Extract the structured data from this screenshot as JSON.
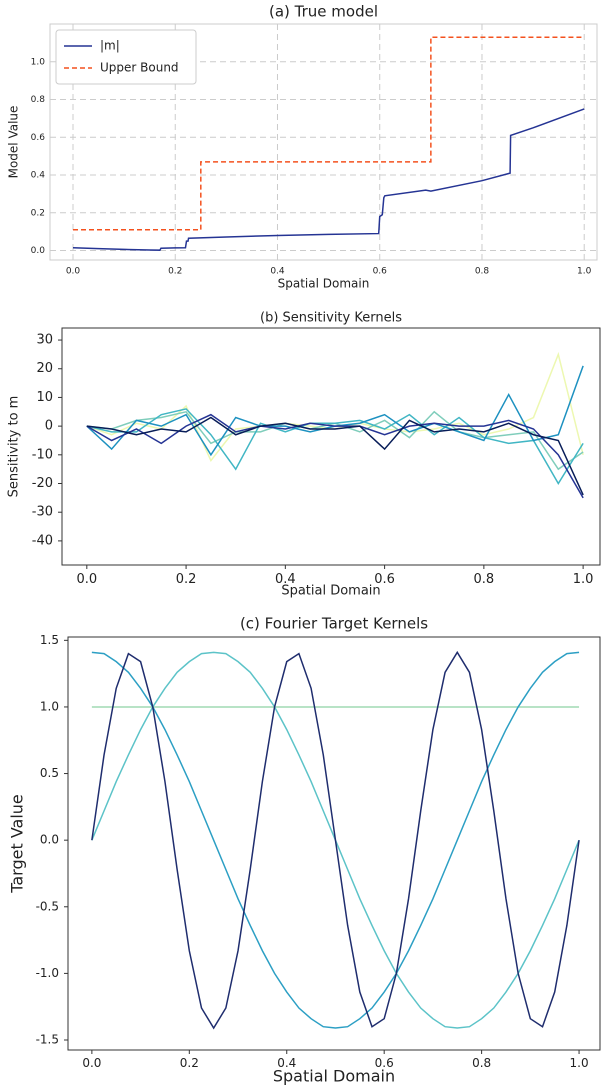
{
  "chart_data": [
    {
      "type": "line",
      "title": "(a) True model",
      "xlabel": "Spatial Domain",
      "ylabel": "Model Value",
      "xlim": [
        -0.045,
        1.025
      ],
      "ylim": [
        -0.05,
        1.2
      ],
      "xticks": [
        {
          "value": 0,
          "label": "0.0"
        },
        0.2,
        0.4,
        0.6,
        0.8,
        {
          "value": 1,
          "label": "1.0"
        }
      ],
      "yticks": [
        {
          "value": 0,
          "label": "0.0"
        },
        0.2,
        0.4,
        0.6,
        0.8,
        {
          "value": 1,
          "label": "1.0"
        }
      ],
      "grid": true,
      "legend": "upper left",
      "series": [
        {
          "name": "|m|",
          "color": "#253494",
          "linestyle": "solid",
          "x": [
            0,
            0.05,
            0.1,
            0.15,
            0.17,
            0.172,
            0.2,
            0.22,
            0.222,
            0.225,
            0.226,
            0.3,
            0.4,
            0.5,
            0.598,
            0.6,
            0.605,
            0.608,
            0.61,
            0.69,
            0.7,
            0.8,
            0.855,
            0.856,
            0.9,
            1.0
          ],
          "values": [
            0.015,
            0.01,
            0.006,
            0.003,
            0.002,
            0.012,
            0.014,
            0.015,
            0.05,
            0.05,
            0.065,
            0.072,
            0.08,
            0.086,
            0.09,
            0.18,
            0.19,
            0.28,
            0.29,
            0.32,
            0.315,
            0.37,
            0.41,
            0.61,
            0.65,
            0.75
          ]
        },
        {
          "name": "Upper Bound",
          "color": "#f4511e",
          "linestyle": "dashed",
          "x": [
            0,
            0.25,
            0.25,
            0.7,
            0.7,
            1.0
          ],
          "values": [
            0.11,
            0.11,
            0.47,
            0.47,
            1.13,
            1.13
          ]
        }
      ]
    },
    {
      "type": "line",
      "title": "(b) Sensitivity Kernels",
      "xlabel": "Spatial Domain",
      "ylabel": "Sensitivity to m",
      "xlim": [
        -0.05,
        1.034
      ],
      "ylim": [
        -48.4,
        34.2
      ],
      "xticks": [
        {
          "value": 0,
          "label": "0.0"
        },
        0.2,
        0.4,
        0.6,
        0.8,
        {
          "value": 1,
          "label": "1.0"
        }
      ],
      "yticks": [
        30,
        20,
        10,
        0,
        -10,
        -20,
        -30,
        -40
      ],
      "grid": false,
      "x": [
        0,
        0.05,
        0.1,
        0.15,
        0.2,
        0.25,
        0.3,
        0.35,
        0.4,
        0.45,
        0.5,
        0.55,
        0.6,
        0.65,
        0.7,
        0.75,
        0.8,
        0.85,
        0.9,
        0.95,
        1.0
      ],
      "series": [
        {
          "color": "#edf8b1",
          "values": [
            0,
            -3,
            1,
            -1,
            7,
            -12,
            -1,
            0,
            1,
            0,
            -1,
            1,
            -1,
            -2,
            -1,
            1,
            -3,
            -1,
            3,
            25,
            -10
          ]
        },
        {
          "color": "#7fcdbb",
          "values": [
            0,
            -1,
            2,
            3,
            5,
            -6,
            -2,
            -2,
            1,
            -1,
            1,
            -2,
            2,
            -4,
            5,
            -2,
            -4,
            -3,
            -2,
            -15,
            -9
          ]
        },
        {
          "color": "#41b6c4",
          "values": [
            0,
            -2,
            -2,
            4,
            6,
            -3,
            -15,
            1,
            -2,
            1,
            1,
            2,
            -1,
            4,
            -3,
            3,
            -4,
            -6,
            -5,
            -20,
            -6
          ]
        },
        {
          "color": "#1d91c0",
          "values": [
            0,
            -8,
            2,
            0,
            4,
            -10,
            3,
            0,
            0,
            -2,
            0,
            1,
            4,
            -2,
            1,
            -2,
            -5,
            11,
            -5,
            -3,
            21
          ]
        },
        {
          "color": "#253494",
          "values": [
            0,
            -5,
            -1,
            -6,
            0,
            4,
            -2,
            0,
            -1,
            1,
            0,
            0,
            -3,
            0,
            1,
            0,
            0,
            2,
            -1,
            -10,
            -25
          ]
        },
        {
          "color": "#081d58",
          "values": [
            0,
            -1,
            -3,
            -1,
            -2,
            3,
            -3,
            0,
            1,
            -1,
            -1,
            0,
            -8,
            2,
            -2,
            -1,
            -2,
            1,
            -3,
            -5,
            -24
          ]
        }
      ]
    },
    {
      "type": "line",
      "title": "(c) Fourier Target Kernels",
      "xlabel": "Spatial Domain",
      "ylabel": "Target Value",
      "xlim": [
        -0.049,
        1.043
      ],
      "ylim": [
        -1.575,
        1.525
      ],
      "xticks": [
        {
          "value": 0,
          "label": "0.0"
        },
        0.2,
        0.4,
        0.6,
        0.8,
        {
          "value": 1,
          "label": "1.0"
        }
      ],
      "yticks": [
        1.5,
        {
          "value": 1,
          "label": "1.0"
        },
        0.5,
        {
          "value": 0,
          "label": "0.0"
        },
        -0.5,
        {
          "value": -1,
          "label": "-1.0"
        },
        -1.5
      ],
      "grid": false,
      "x": [
        0,
        0.025,
        0.05,
        0.075,
        0.1,
        0.125,
        0.15,
        0.175,
        0.2,
        0.225,
        0.25,
        0.275,
        0.3,
        0.325,
        0.35,
        0.375,
        0.4,
        0.425,
        0.45,
        0.475,
        0.5,
        0.525,
        0.55,
        0.575,
        0.6,
        0.625,
        0.65,
        0.675,
        0.7,
        0.725,
        0.75,
        0.775,
        0.8,
        0.825,
        0.85,
        0.875,
        0.9,
        0.925,
        0.95,
        0.975,
        1.0
      ],
      "series": [
        {
          "color": "#a1dab4",
          "values": [
            1,
            1,
            1,
            1,
            1,
            1,
            1,
            1,
            1,
            1,
            1,
            1,
            1,
            1,
            1,
            1,
            1,
            1,
            1,
            1,
            1,
            1,
            1,
            1,
            1,
            1,
            1,
            1,
            1,
            1,
            1,
            1,
            1,
            1,
            1,
            1,
            1,
            1,
            1,
            1,
            1
          ]
        },
        {
          "color": "#5cc3c8",
          "values": [
            0,
            0.22,
            0.44,
            0.64,
            0.83,
            1.0,
            1.14,
            1.26,
            1.34,
            1.4,
            1.41,
            1.4,
            1.34,
            1.26,
            1.14,
            1.0,
            0.83,
            0.64,
            0.44,
            0.22,
            0,
            -0.22,
            -0.44,
            -0.64,
            -0.83,
            -1.0,
            -1.14,
            -1.26,
            -1.34,
            -1.4,
            -1.41,
            -1.4,
            -1.34,
            -1.26,
            -1.14,
            -1.0,
            -0.83,
            -0.64,
            -0.44,
            -0.22,
            0
          ]
        },
        {
          "color": "#2c9fc4",
          "values": [
            1.41,
            1.4,
            1.34,
            1.26,
            1.14,
            1.0,
            0.83,
            0.64,
            0.44,
            0.22,
            0,
            -0.22,
            -0.44,
            -0.64,
            -0.83,
            -1.0,
            -1.14,
            -1.26,
            -1.34,
            -1.4,
            -1.41,
            -1.4,
            -1.34,
            -1.26,
            -1.14,
            -1.0,
            -0.83,
            -0.64,
            -0.44,
            -0.22,
            0,
            0.22,
            0.44,
            0.64,
            0.83,
            1.0,
            1.14,
            1.26,
            1.34,
            1.4,
            1.41
          ]
        },
        {
          "color": "#1f2d6e",
          "values": [
            0,
            0.64,
            1.14,
            1.4,
            1.34,
            1.0,
            0.44,
            -0.22,
            -0.83,
            -1.26,
            -1.41,
            -1.26,
            -0.83,
            -0.22,
            0.44,
            1.0,
            1.34,
            1.4,
            1.14,
            0.64,
            0,
            -0.64,
            -1.14,
            -1.4,
            -1.34,
            -1.0,
            -0.44,
            0.22,
            0.83,
            1.26,
            1.41,
            1.26,
            0.83,
            0.22,
            -0.44,
            -1.0,
            -1.34,
            -1.4,
            -1.14,
            -0.64,
            0
          ]
        }
      ]
    }
  ]
}
